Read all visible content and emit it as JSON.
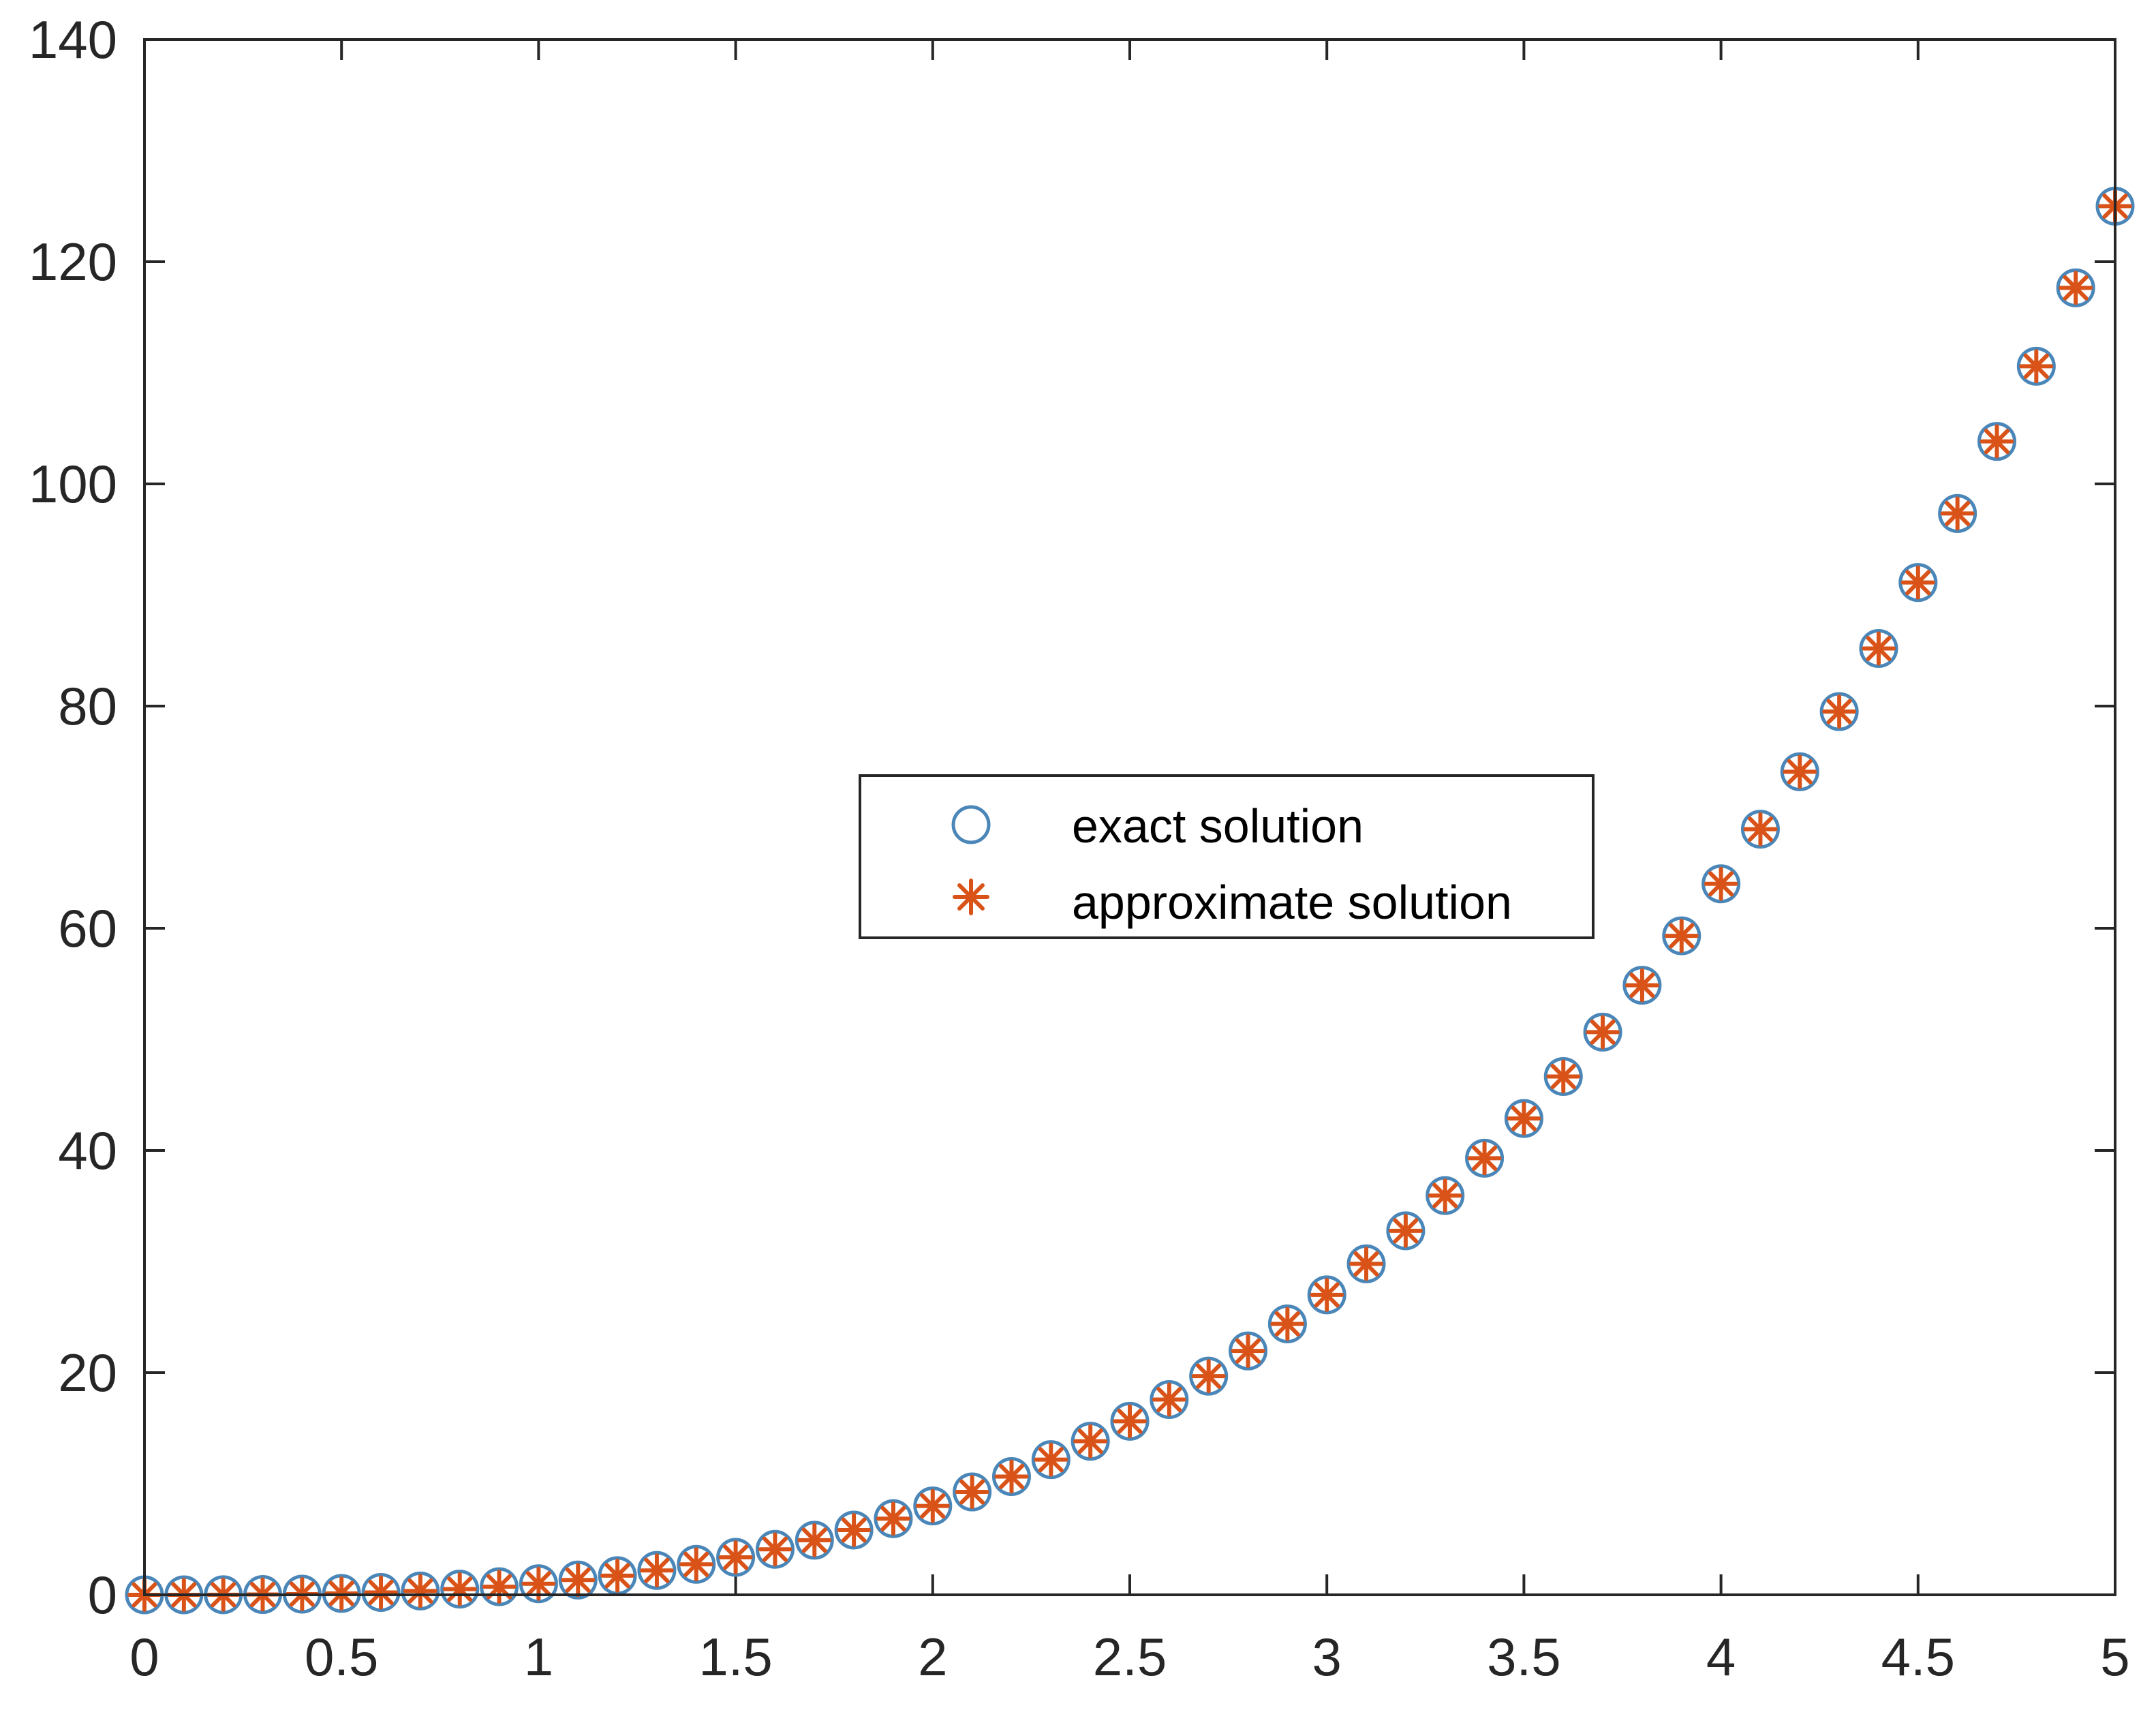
{
  "chart_data": {
    "type": "scatter",
    "title": "",
    "xlabel": "",
    "ylabel": "",
    "xlim": [
      0,
      5
    ],
    "ylim": [
      0,
      140
    ],
    "xticks": [
      "0",
      "0.5",
      "1",
      "1.5",
      "2",
      "2.5",
      "3",
      "3.5",
      "4",
      "4.5",
      "5"
    ],
    "yticks": [
      "0",
      "20",
      "40",
      "60",
      "80",
      "100",
      "120",
      "140"
    ],
    "grid": false,
    "legend_position": "center",
    "x": [
      0,
      0.1,
      0.2,
      0.3,
      0.4,
      0.5,
      0.6,
      0.7,
      0.8,
      0.9,
      1.0,
      1.1,
      1.2,
      1.3,
      1.4,
      1.5,
      1.6,
      1.7,
      1.8,
      1.9,
      2.0,
      2.1,
      2.2,
      2.3,
      2.4,
      2.5,
      2.6,
      2.7,
      2.8,
      2.9,
      3.0,
      3.1,
      3.2,
      3.3,
      3.4,
      3.5,
      3.6,
      3.7,
      3.8,
      3.9,
      4.0,
      4.1,
      4.2,
      4.3,
      4.4,
      4.5,
      4.6,
      4.7,
      4.8,
      4.9,
      5.0
    ],
    "series": [
      {
        "name": "exact solution",
        "marker": "circle",
        "color": "#4a86b8",
        "values": [
          0,
          0.001,
          0.008,
          0.027,
          0.064,
          0.125,
          0.216,
          0.343,
          0.512,
          0.729,
          1.0,
          1.331,
          1.728,
          2.197,
          2.744,
          3.375,
          4.096,
          4.913,
          5.832,
          6.859,
          8.0,
          9.261,
          10.648,
          12.167,
          13.824,
          15.625,
          17.576,
          19.683,
          21.952,
          24.389,
          27.0,
          29.791,
          32.768,
          35.937,
          39.304,
          42.875,
          46.656,
          50.653,
          54.872,
          59.319,
          64.0,
          68.921,
          74.088,
          79.507,
          85.184,
          91.125,
          97.336,
          103.823,
          110.592,
          117.649,
          125.0
        ]
      },
      {
        "name": "approximate solution",
        "marker": "asterisk",
        "color": "#d95319",
        "values": [
          0,
          0.001,
          0.008,
          0.027,
          0.064,
          0.125,
          0.216,
          0.343,
          0.512,
          0.729,
          1.0,
          1.331,
          1.728,
          2.197,
          2.744,
          3.375,
          4.096,
          4.913,
          5.832,
          6.859,
          8.0,
          9.261,
          10.648,
          12.167,
          13.824,
          15.625,
          17.576,
          19.683,
          21.952,
          24.389,
          27.0,
          29.791,
          32.768,
          35.937,
          39.304,
          42.875,
          46.656,
          50.653,
          54.872,
          59.319,
          64.0,
          68.921,
          74.088,
          79.507,
          85.184,
          91.125,
          97.336,
          103.823,
          110.592,
          117.649,
          125.0
        ]
      }
    ]
  }
}
